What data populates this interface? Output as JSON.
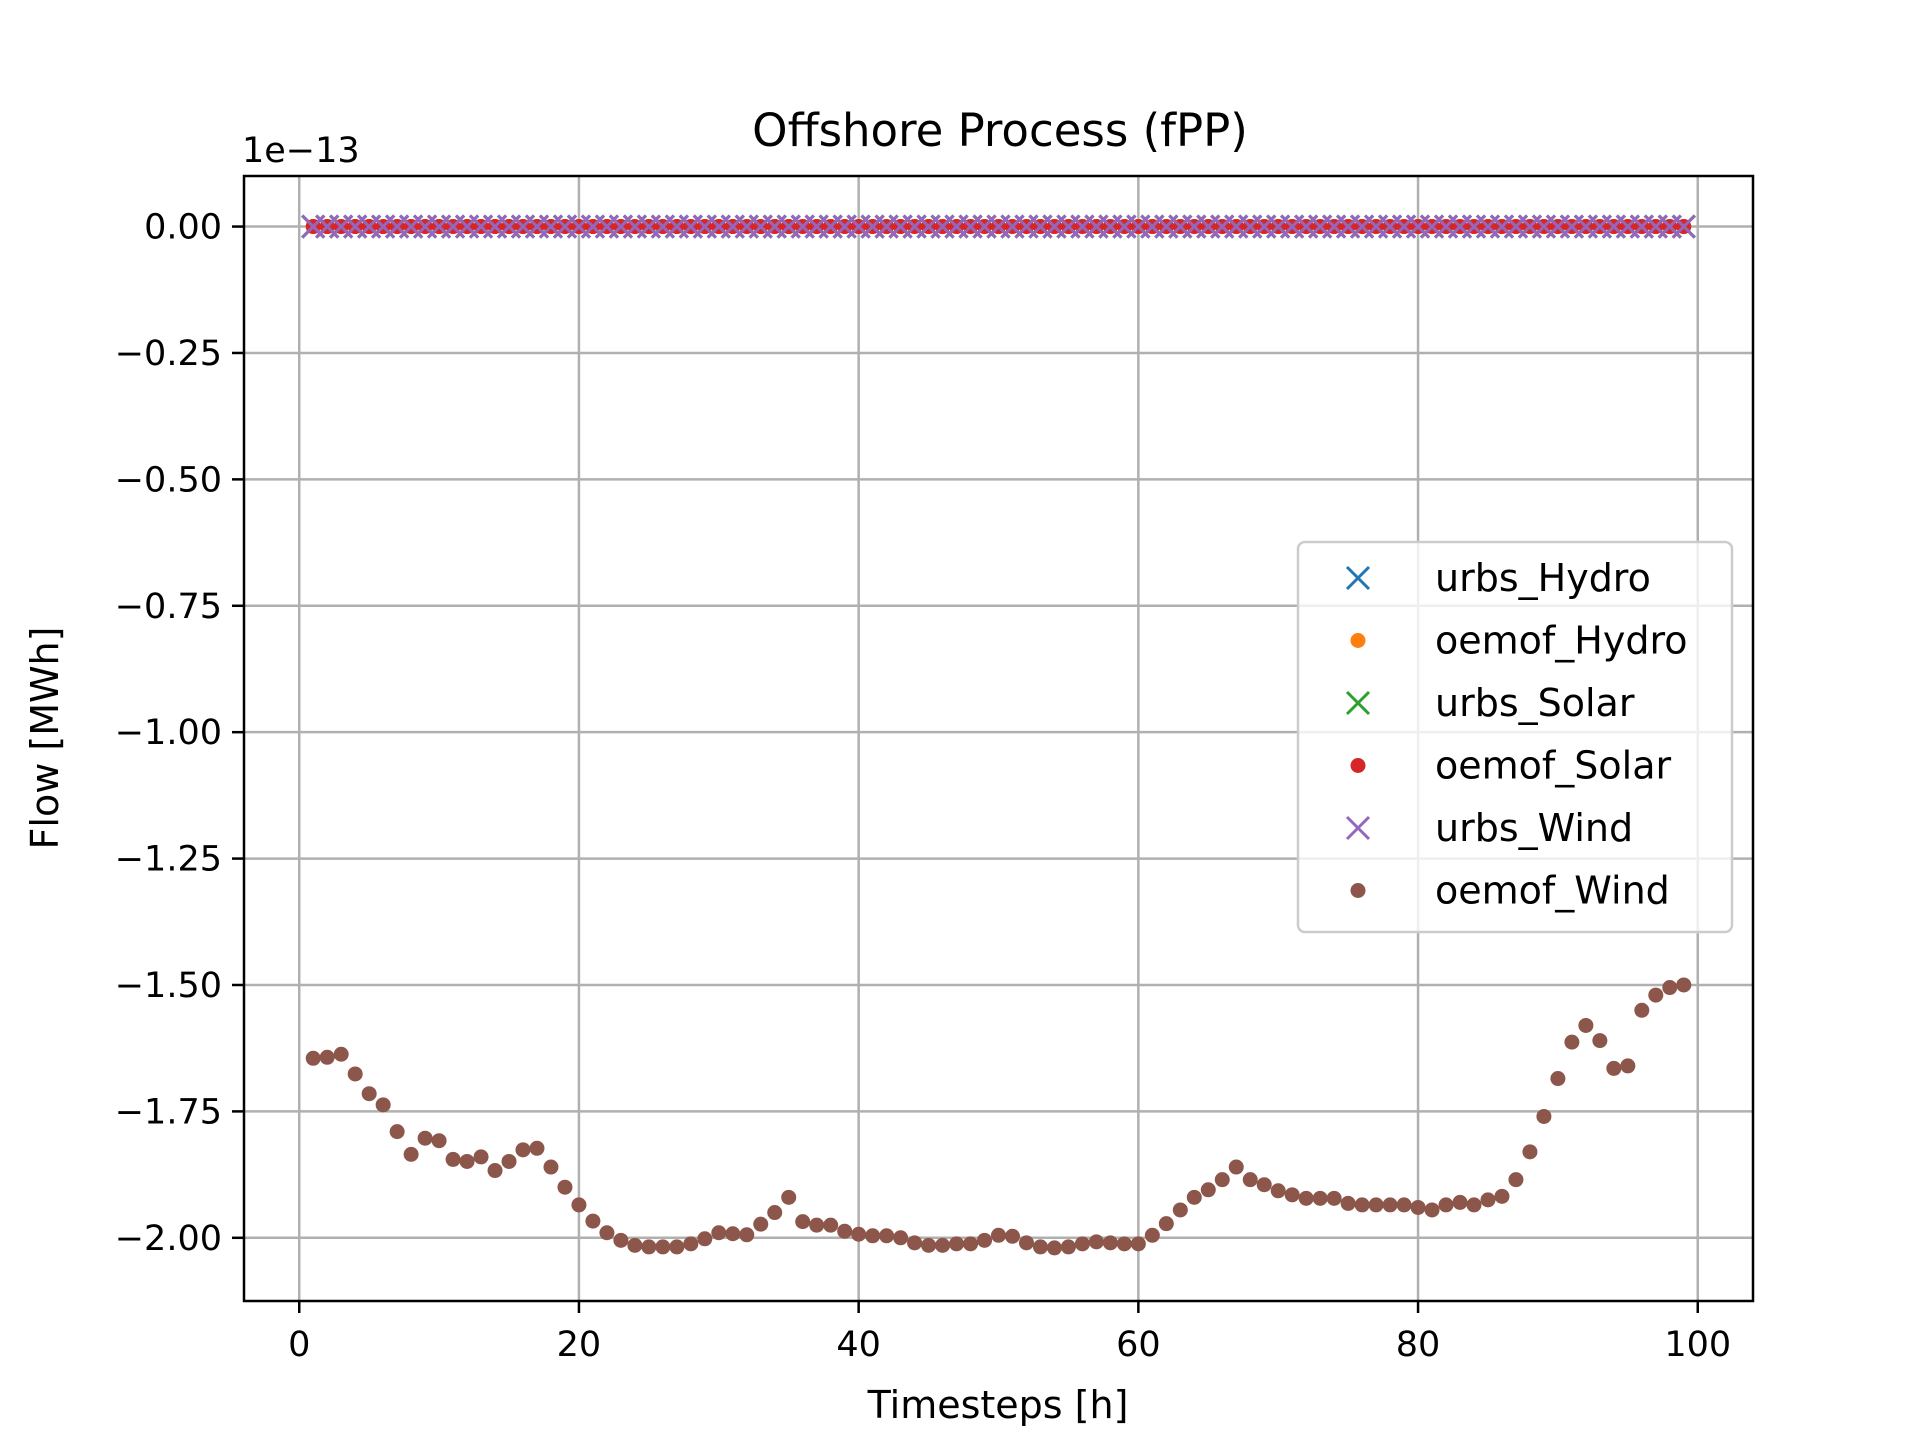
{
  "chart_data": {
    "type": "scatter",
    "title": "Offshore Process (fPP)",
    "xlabel": "Timesteps [h]",
    "ylabel": "Flow [MWh]",
    "y_offset_label": "1e−13",
    "xlim": [
      -3.95,
      103.95
    ],
    "ylim": [
      -2.125,
      0.1
    ],
    "xticks": [
      0,
      20,
      40,
      60,
      80,
      100
    ],
    "xtick_labels": [
      "0",
      "20",
      "40",
      "60",
      "80",
      "100"
    ],
    "yticks": [
      0.0,
      -0.25,
      -0.5,
      -0.75,
      -1.0,
      -1.25,
      -1.5,
      -1.75,
      -2.0
    ],
    "ytick_labels": [
      "0.00",
      "−0.25",
      "−0.50",
      "−0.75",
      "−1.00",
      "−1.25",
      "−1.50",
      "−1.75",
      "−2.00"
    ],
    "grid": true,
    "legend_position": "center-right",
    "x": [
      1,
      2,
      3,
      4,
      5,
      6,
      7,
      8,
      9,
      10,
      11,
      12,
      13,
      14,
      15,
      16,
      17,
      18,
      19,
      20,
      21,
      22,
      23,
      24,
      25,
      26,
      27,
      28,
      29,
      30,
      31,
      32,
      33,
      34,
      35,
      36,
      37,
      38,
      39,
      40,
      41,
      42,
      43,
      44,
      45,
      46,
      47,
      48,
      49,
      50,
      51,
      52,
      53,
      54,
      55,
      56,
      57,
      58,
      59,
      60,
      61,
      62,
      63,
      64,
      65,
      66,
      67,
      68,
      69,
      70,
      71,
      72,
      73,
      74,
      75,
      76,
      77,
      78,
      79,
      80,
      81,
      82,
      83,
      84,
      85,
      86,
      87,
      88,
      89,
      90,
      91,
      92,
      93,
      94,
      95,
      96,
      97,
      98,
      99
    ],
    "series": [
      {
        "name": "urbs_Hydro",
        "marker": "x",
        "color": "#1f77b4",
        "constant": 0.0
      },
      {
        "name": "oemof_Hydro",
        "marker": "dot",
        "color": "#ff7f0e",
        "constant": 0.0
      },
      {
        "name": "urbs_Solar",
        "marker": "x",
        "color": "#2ca02c",
        "constant": 0.0
      },
      {
        "name": "oemof_Solar",
        "marker": "dot",
        "color": "#d62728",
        "constant": 0.0
      },
      {
        "name": "urbs_Wind",
        "marker": "x",
        "color": "#9467bd",
        "constant": 0.0
      },
      {
        "name": "oemof_Wind",
        "marker": "dot",
        "color": "#8c564b",
        "values": [
          -1.645,
          -1.643,
          -1.637,
          -1.676,
          -1.715,
          -1.737,
          -1.79,
          -1.835,
          -1.803,
          -1.808,
          -1.845,
          -1.849,
          -1.84,
          -1.867,
          -1.849,
          -1.826,
          -1.823,
          -1.86,
          -1.9,
          -1.935,
          -1.967,
          -1.99,
          -2.005,
          -2.015,
          -2.018,
          -2.018,
          -2.018,
          -2.012,
          -2.002,
          -1.99,
          -1.992,
          -1.994,
          -1.973,
          -1.95,
          -1.92,
          -1.968,
          -1.975,
          -1.975,
          -1.987,
          -1.993,
          -1.996,
          -1.996,
          -2.0,
          -2.01,
          -2.015,
          -2.015,
          -2.012,
          -2.012,
          -2.005,
          -1.995,
          -1.997,
          -2.01,
          -2.018,
          -2.02,
          -2.018,
          -2.012,
          -2.008,
          -2.01,
          -2.012,
          -2.012,
          -1.995,
          -1.972,
          -1.945,
          -1.92,
          -1.905,
          -1.885,
          -1.86,
          -1.885,
          -1.895,
          -1.907,
          -1.915,
          -1.922,
          -1.922,
          -1.922,
          -1.932,
          -1.935,
          -1.935,
          -1.935,
          -1.935,
          -1.94,
          -1.945,
          -1.935,
          -1.93,
          -1.935,
          -1.925,
          -1.918,
          -1.885,
          -1.83,
          -1.76,
          -1.685,
          -1.613,
          -1.58,
          -1.61,
          -1.665,
          -1.66,
          -1.55,
          -1.52,
          -1.505,
          -1.5
        ]
      }
    ]
  }
}
